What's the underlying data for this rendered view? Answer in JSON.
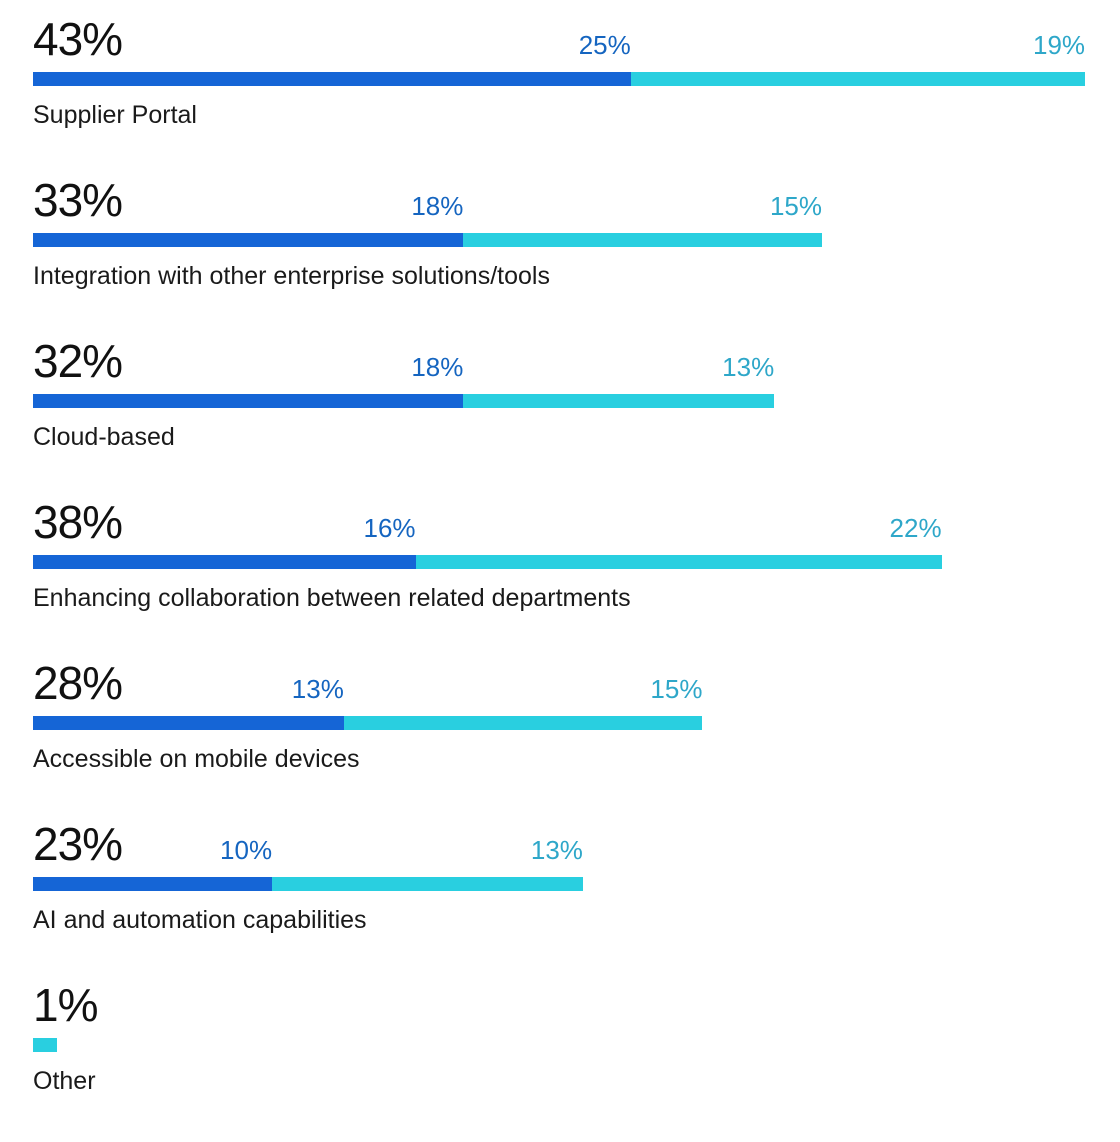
{
  "chart_data": {
    "type": "bar",
    "orientation": "horizontal",
    "stacked": true,
    "colors": {
      "series_a": "#1565d6",
      "series_b": "#29cfe0"
    },
    "categories": [
      "Supplier Portal",
      "Integration with other enterprise solutions/tools",
      "Cloud-based",
      "Enhancing collaboration between related departments",
      "Accessible on mobile devices",
      "AI and automation capabilities",
      "Other"
    ],
    "totals": [
      "43%",
      "33%",
      "32%",
      "38%",
      "28%",
      "23%",
      "1%"
    ],
    "series": [
      {
        "values": [
          25,
          18,
          18,
          16,
          13,
          10,
          0
        ],
        "labels": [
          "25%",
          "18%",
          "18%",
          "16%",
          "13%",
          "10%",
          ""
        ]
      },
      {
        "values": [
          19,
          15,
          13,
          22,
          15,
          13,
          1
        ],
        "labels": [
          "19%",
          "15%",
          "13%",
          "22%",
          "15%",
          "13%",
          ""
        ]
      }
    ]
  }
}
